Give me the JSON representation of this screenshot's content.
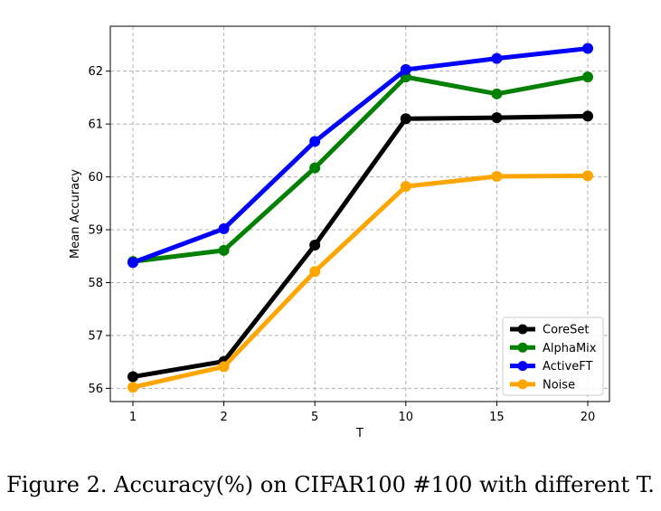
{
  "chart_data": {
    "type": "line",
    "xlabel": "T",
    "ylabel": "Mean Accuracy",
    "categories": [
      "1",
      "2",
      "5",
      "10",
      "15",
      "20"
    ],
    "yticks": [
      "56",
      "57",
      "58",
      "59",
      "60",
      "61",
      "62"
    ],
    "ylim": [
      55.75,
      62.85
    ],
    "grid": true,
    "legend_position": "bottom-right",
    "series": [
      {
        "name": "CoreSet",
        "color": "#000000",
        "values": [
          56.22,
          56.51,
          58.71,
          61.1,
          61.12,
          61.15
        ]
      },
      {
        "name": "AlphaMix",
        "color": "#008000",
        "values": [
          58.4,
          58.61,
          60.17,
          61.89,
          61.57,
          61.89
        ]
      },
      {
        "name": "ActiveFT",
        "color": "#0000ff",
        "values": [
          58.38,
          59.02,
          60.67,
          62.03,
          62.24,
          62.43
        ]
      },
      {
        "name": "Noise",
        "color": "#ffa500",
        "values": [
          56.02,
          56.41,
          58.21,
          59.82,
          60.01,
          60.02
        ]
      }
    ]
  },
  "caption": "Figure 2. Accuracy(%) on CIFAR100 #100 with different T."
}
